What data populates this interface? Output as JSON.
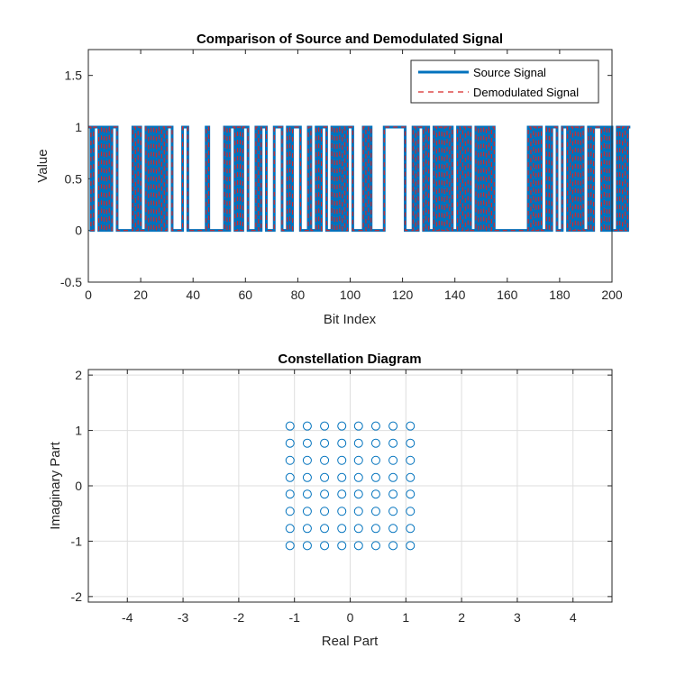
{
  "chart_data": [
    {
      "type": "line",
      "title": "Comparison of Source and Demodulated Signal",
      "xlabel": "Bit Index",
      "ylabel": "Value",
      "xlim": [
        0,
        200
      ],
      "ylim": [
        -0.5,
        1.75
      ],
      "xticks": [
        0,
        20,
        40,
        60,
        80,
        100,
        120,
        140,
        160,
        180,
        200
      ],
      "yticks": [
        -0.5,
        0,
        0.5,
        1,
        1.5
      ],
      "xtick_labels": [
        "0",
        "20",
        "40",
        "60",
        "80",
        "100",
        "120",
        "140",
        "160",
        "180",
        "200"
      ],
      "ytick_labels": [
        "-0.5",
        "0",
        "0.5",
        "1",
        "1.5"
      ],
      "grid": false,
      "legend_position": "top-right",
      "step": true,
      "series": [
        {
          "name": "Source Signal",
          "color": "#0072BD",
          "line_style": "solid",
          "values": [
            1,
            0,
            1,
            1,
            0,
            1,
            0,
            1,
            0,
            1,
            1,
            0,
            0,
            0,
            0,
            0,
            0,
            1,
            0,
            1,
            0,
            0,
            1,
            0,
            1,
            0,
            1,
            0,
            1,
            0,
            1,
            1,
            0,
            0,
            0,
            0,
            1,
            1,
            0,
            0,
            0,
            0,
            0,
            0,
            0,
            1,
            0,
            0,
            0,
            0,
            0,
            0,
            1,
            0,
            1,
            1,
            0,
            1,
            0,
            1,
            1,
            0,
            0,
            0,
            1,
            0,
            1,
            1,
            0,
            0,
            0,
            1,
            1,
            1,
            0,
            0,
            1,
            0,
            1,
            1,
            1,
            0,
            0,
            0,
            1,
            0,
            0,
            1,
            0,
            1,
            1,
            0,
            0,
            1,
            0,
            1,
            0,
            1,
            0,
            1,
            1,
            0,
            0,
            0,
            0,
            1,
            0,
            1,
            0,
            0,
            0,
            0,
            0,
            1,
            1,
            1,
            1,
            1,
            1,
            1,
            1,
            0,
            0,
            0,
            1,
            0,
            1,
            1,
            0,
            1,
            0,
            0,
            1,
            0,
            1,
            0,
            1,
            0,
            1,
            0,
            0,
            1,
            0,
            1,
            0,
            1,
            0,
            0,
            1,
            0,
            1,
            0,
            1,
            0,
            1,
            0,
            0,
            0,
            0,
            0,
            0,
            0,
            0,
            0,
            0,
            0,
            0,
            0,
            1,
            0,
            1,
            0,
            1,
            0,
            0,
            1,
            0,
            1,
            1,
            0,
            0,
            1,
            1,
            0,
            1,
            0,
            1,
            0,
            1,
            0,
            0,
            1,
            0,
            1,
            1,
            1,
            0,
            1,
            0,
            1,
            0,
            0,
            1,
            0,
            1,
            0,
            1
          ]
        },
        {
          "name": "Demodulated Signal",
          "color": "#D62728",
          "line_style": "dashed",
          "values": [
            1,
            0,
            1,
            1,
            0,
            1,
            0,
            1,
            0,
            1,
            1,
            0,
            0,
            0,
            0,
            0,
            0,
            1,
            0,
            1,
            0,
            0,
            1,
            0,
            1,
            0,
            1,
            0,
            1,
            0,
            1,
            1,
            0,
            0,
            0,
            0,
            1,
            1,
            0,
            0,
            0,
            0,
            0,
            0,
            0,
            1,
            0,
            0,
            0,
            0,
            0,
            0,
            1,
            0,
            1,
            1,
            0,
            1,
            0,
            1,
            1,
            0,
            0,
            0,
            1,
            0,
            1,
            1,
            0,
            0,
            0,
            1,
            1,
            1,
            0,
            0,
            1,
            0,
            1,
            1,
            1,
            0,
            0,
            0,
            1,
            0,
            0,
            1,
            0,
            1,
            1,
            0,
            0,
            1,
            0,
            1,
            0,
            1,
            0,
            1,
            1,
            0,
            0,
            0,
            0,
            1,
            0,
            1,
            0,
            0,
            0,
            0,
            0,
            1,
            1,
            1,
            1,
            1,
            1,
            1,
            1,
            0,
            0,
            0,
            1,
            0,
            1,
            1,
            0,
            1,
            0,
            0,
            1,
            0,
            1,
            0,
            1,
            0,
            1,
            0,
            0,
            1,
            0,
            1,
            0,
            1,
            0,
            0,
            1,
            0,
            1,
            0,
            1,
            0,
            1,
            0,
            0,
            0,
            0,
            0,
            0,
            0,
            0,
            0,
            0,
            0,
            0,
            0,
            1,
            0,
            1,
            0,
            1,
            0,
            0,
            1,
            0,
            1,
            1,
            0,
            0,
            1,
            1,
            0,
            1,
            0,
            1,
            0,
            1,
            0,
            0,
            1,
            0,
            1,
            1,
            1,
            0,
            1,
            0,
            1,
            0,
            0,
            1,
            0,
            1,
            0,
            1
          ]
        }
      ]
    },
    {
      "type": "scatter",
      "title": "Constellation Diagram",
      "xlabel": "Real Part",
      "ylabel": "Imaginary Part",
      "xlim": [
        -4.7,
        4.7
      ],
      "ylim": [
        -2.1,
        2.1
      ],
      "xticks": [
        -4,
        -3,
        -2,
        -1,
        0,
        1,
        2,
        3,
        4
      ],
      "yticks": [
        -2,
        -1,
        0,
        1,
        2
      ],
      "xtick_labels": [
        "-4",
        "-3",
        "-2",
        "-1",
        "0",
        "1",
        "2",
        "3",
        "4"
      ],
      "ytick_labels": [
        "-2",
        "-1",
        "0",
        "1",
        "2"
      ],
      "grid": true,
      "marker": "circle",
      "marker_color": "#0072BD",
      "levels": [
        -1.08,
        -0.77,
        -0.46,
        -0.15,
        0.15,
        0.46,
        0.77,
        1.08
      ],
      "x": [
        -1.08,
        -0.77,
        -0.46,
        -0.15,
        0.15,
        0.46,
        0.77,
        1.08,
        -1.08,
        -0.77,
        -0.46,
        -0.15,
        0.15,
        0.46,
        0.77,
        1.08,
        -1.08,
        -0.77,
        -0.46,
        -0.15,
        0.15,
        0.46,
        0.77,
        1.08,
        -1.08,
        -0.77,
        -0.46,
        -0.15,
        0.15,
        0.46,
        0.77,
        1.08,
        -1.08,
        -0.77,
        -0.46,
        -0.15,
        0.15,
        0.46,
        0.77,
        1.08,
        -1.08,
        -0.77,
        -0.46,
        -0.15,
        0.15,
        0.46,
        0.77,
        1.08,
        -1.08,
        -0.77,
        -0.46,
        -0.15,
        0.15,
        0.46,
        0.77,
        1.08,
        -1.08,
        -0.77,
        -0.46,
        -0.15,
        0.15,
        0.46,
        0.77,
        1.08
      ],
      "y": [
        -1.08,
        -1.08,
        -1.08,
        -1.08,
        -1.08,
        -1.08,
        -1.08,
        -1.08,
        -0.77,
        -0.77,
        -0.77,
        -0.77,
        -0.77,
        -0.77,
        -0.77,
        -0.77,
        -0.46,
        -0.46,
        -0.46,
        -0.46,
        -0.46,
        -0.46,
        -0.46,
        -0.46,
        -0.15,
        -0.15,
        -0.15,
        -0.15,
        -0.15,
        -0.15,
        -0.15,
        -0.15,
        0.15,
        0.15,
        0.15,
        0.15,
        0.15,
        0.15,
        0.15,
        0.15,
        0.46,
        0.46,
        0.46,
        0.46,
        0.46,
        0.46,
        0.46,
        0.46,
        0.77,
        0.77,
        0.77,
        0.77,
        0.77,
        0.77,
        0.77,
        0.77,
        1.08,
        1.08,
        1.08,
        1.08,
        1.08,
        1.08,
        1.08,
        1.08
      ]
    }
  ]
}
